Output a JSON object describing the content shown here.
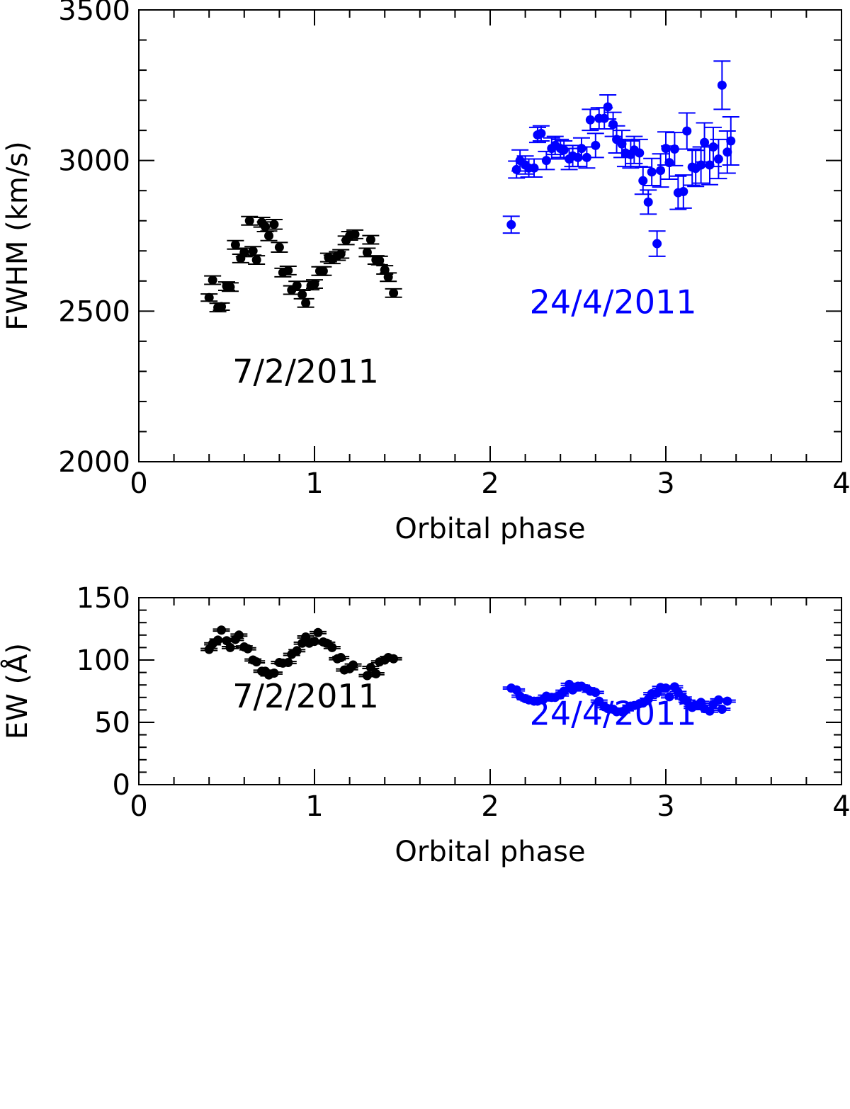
{
  "chart_data": [
    {
      "type": "scatter",
      "title": "",
      "xlabel": "Orbital phase",
      "ylabel": "FWHM (km/s)",
      "xlim": [
        0,
        4
      ],
      "ylim": [
        2000,
        3500
      ],
      "x_ticks": [
        0,
        1,
        2,
        3,
        4
      ],
      "y_ticks": [
        2000,
        2500,
        3000,
        3500
      ],
      "x_minor_step": 0.2,
      "y_minor_step": 100,
      "error_bars": true,
      "grid": false,
      "legend": "none",
      "annotations": [
        {
          "text": "7/2/2011",
          "color": "#000000",
          "x": 0.95,
          "y": 2300
        },
        {
          "text": "24/4/2011",
          "color": "#0000ff",
          "x": 2.7,
          "y": 2530
        }
      ],
      "series": [
        {
          "color": "#000000",
          "points": [
            [
              0.4,
              2545,
              12
            ],
            [
              0.42,
              2603,
              14
            ],
            [
              0.45,
              2512,
              14
            ],
            [
              0.47,
              2515,
              12
            ],
            [
              0.5,
              2583,
              14
            ],
            [
              0.52,
              2580,
              14
            ],
            [
              0.55,
              2720,
              14
            ],
            [
              0.58,
              2675,
              14
            ],
            [
              0.6,
              2695,
              14
            ],
            [
              0.63,
              2800,
              14
            ],
            [
              0.65,
              2700,
              14
            ],
            [
              0.67,
              2670,
              14
            ],
            [
              0.7,
              2795,
              16
            ],
            [
              0.72,
              2780,
              16
            ],
            [
              0.74,
              2750,
              16
            ],
            [
              0.77,
              2788,
              16
            ],
            [
              0.8,
              2712,
              16
            ],
            [
              0.82,
              2628,
              14
            ],
            [
              0.85,
              2635,
              14
            ],
            [
              0.87,
              2570,
              14
            ],
            [
              0.9,
              2585,
              14
            ],
            [
              0.93,
              2555,
              14
            ],
            [
              0.95,
              2527,
              14
            ],
            [
              0.98,
              2585,
              14
            ],
            [
              1.0,
              2590,
              14
            ],
            [
              1.03,
              2633,
              14
            ],
            [
              1.05,
              2633,
              14
            ],
            [
              1.08,
              2678,
              14
            ],
            [
              1.1,
              2672,
              14
            ],
            [
              1.13,
              2683,
              14
            ],
            [
              1.15,
              2690,
              14
            ],
            [
              1.18,
              2735,
              14
            ],
            [
              1.2,
              2750,
              14
            ],
            [
              1.23,
              2755,
              14
            ],
            [
              1.3,
              2695,
              14
            ],
            [
              1.32,
              2737,
              14
            ],
            [
              1.35,
              2670,
              14
            ],
            [
              1.37,
              2668,
              14
            ],
            [
              1.4,
              2637,
              14
            ],
            [
              1.42,
              2613,
              14
            ],
            [
              1.45,
              2560,
              14
            ]
          ]
        },
        {
          "color": "#0000ff",
          "points": [
            [
              2.12,
              2787,
              28
            ],
            [
              2.15,
              2970,
              28
            ],
            [
              2.17,
              3000,
              35
            ],
            [
              2.2,
              2985,
              30
            ],
            [
              2.22,
              2975,
              30
            ],
            [
              2.25,
              2975,
              30
            ],
            [
              2.27,
              3085,
              25
            ],
            [
              2.29,
              3090,
              25
            ],
            [
              2.32,
              3000,
              30
            ],
            [
              2.35,
              3040,
              35
            ],
            [
              2.37,
              3050,
              30
            ],
            [
              2.4,
              3040,
              30
            ],
            [
              2.42,
              3035,
              30
            ],
            [
              2.45,
              3005,
              35
            ],
            [
              2.47,
              3015,
              35
            ],
            [
              2.5,
              3010,
              30
            ],
            [
              2.52,
              3040,
              35
            ],
            [
              2.55,
              3010,
              35
            ],
            [
              2.57,
              3135,
              35
            ],
            [
              2.6,
              3050,
              40
            ],
            [
              2.62,
              3140,
              35
            ],
            [
              2.65,
              3140,
              35
            ],
            [
              2.67,
              3178,
              40
            ],
            [
              2.7,
              3120,
              40
            ],
            [
              2.72,
              3070,
              45
            ],
            [
              2.75,
              3055,
              45
            ],
            [
              2.77,
              3025,
              45
            ],
            [
              2.8,
              3020,
              45
            ],
            [
              2.82,
              3035,
              45
            ],
            [
              2.85,
              3025,
              45
            ],
            [
              2.87,
              2933,
              45
            ],
            [
              2.9,
              2862,
              40
            ],
            [
              2.92,
              2962,
              45
            ],
            [
              2.95,
              2724,
              42
            ],
            [
              2.97,
              2967,
              55
            ],
            [
              3.0,
              3040,
              55
            ],
            [
              3.02,
              2993,
              55
            ],
            [
              3.05,
              3038,
              55
            ],
            [
              3.07,
              2893,
              55
            ],
            [
              3.1,
              2897,
              55
            ],
            [
              3.12,
              3098,
              60
            ],
            [
              3.15,
              2978,
              60
            ],
            [
              3.17,
              2974,
              60
            ],
            [
              3.2,
              2985,
              60
            ],
            [
              3.22,
              3060,
              65
            ],
            [
              3.25,
              2985,
              65
            ],
            [
              3.27,
              3045,
              65
            ],
            [
              3.3,
              3005,
              65
            ],
            [
              3.32,
              3250,
              80
            ],
            [
              3.35,
              3028,
              70
            ],
            [
              3.37,
              3065,
              80
            ]
          ]
        }
      ]
    },
    {
      "type": "scatter",
      "title": "",
      "xlabel": "Orbital phase",
      "ylabel": "EW (Å)",
      "xlim": [
        0,
        4
      ],
      "ylim": [
        0,
        150
      ],
      "x_ticks": [
        0,
        1,
        2,
        3,
        4
      ],
      "y_ticks": [
        0,
        50,
        100,
        150
      ],
      "x_minor_step": 0.2,
      "y_minor_step": 10,
      "error_bars": true,
      "grid": false,
      "legend": "none",
      "annotations": [
        {
          "text": "7/2/2011",
          "color": "#000000",
          "x": 0.95,
          "y": 71
        },
        {
          "text": "24/4/2011",
          "color": "#0000ff",
          "x": 2.7,
          "y": 57
        }
      ],
      "series": [
        {
          "color": "#000000",
          "points": [
            [
              0.4,
              108.5,
              0.8
            ],
            [
              0.42,
              113,
              0.8
            ],
            [
              0.45,
              116,
              0.8
            ],
            [
              0.47,
              124,
              0.8
            ],
            [
              0.5,
              115.5,
              0.8
            ],
            [
              0.52,
              110,
              0.8
            ],
            [
              0.55,
              116.5,
              0.8
            ],
            [
              0.57,
              120,
              0.8
            ],
            [
              0.6,
              110.5,
              0.8
            ],
            [
              0.62,
              109,
              0.8
            ],
            [
              0.65,
              100,
              0.8
            ],
            [
              0.67,
              98.5,
              0.8
            ],
            [
              0.7,
              91,
              0.8
            ],
            [
              0.72,
              91,
              0.8
            ],
            [
              0.74,
              88,
              0.8
            ],
            [
              0.77,
              89.5,
              0.8
            ],
            [
              0.8,
              98,
              0.8
            ],
            [
              0.82,
              97.5,
              0.8
            ],
            [
              0.85,
              98,
              0.8
            ],
            [
              0.87,
              104.5,
              0.8
            ],
            [
              0.9,
              107.5,
              0.8
            ],
            [
              0.93,
              113.5,
              0.8
            ],
            [
              0.95,
              118.5,
              0.8
            ],
            [
              0.97,
              113.5,
              0.8
            ],
            [
              1.0,
              115,
              0.8
            ],
            [
              1.02,
              122,
              0.8
            ],
            [
              1.05,
              114.5,
              0.8
            ],
            [
              1.07,
              113.5,
              0.8
            ],
            [
              1.1,
              110,
              0.8
            ],
            [
              1.13,
              101,
              0.8
            ],
            [
              1.15,
              102,
              0.8
            ],
            [
              1.17,
              92,
              0.8
            ],
            [
              1.2,
              93,
              0.8
            ],
            [
              1.22,
              96,
              0.8
            ],
            [
              1.3,
              87.5,
              0.8
            ],
            [
              1.32,
              94,
              0.8
            ],
            [
              1.35,
              89,
              0.8
            ],
            [
              1.37,
              98.5,
              0.8
            ],
            [
              1.4,
              100,
              0.8
            ],
            [
              1.42,
              102,
              0.8
            ],
            [
              1.45,
              101,
              0.8
            ]
          ]
        },
        {
          "color": "#0000ff",
          "points": [
            [
              2.12,
              77.5,
              0.8
            ],
            [
              2.15,
              76,
              0.8
            ],
            [
              2.17,
              71,
              0.8
            ],
            [
              2.2,
              69,
              0.8
            ],
            [
              2.22,
              68,
              0.8
            ],
            [
              2.25,
              67,
              0.8
            ],
            [
              2.27,
              67,
              0.8
            ],
            [
              2.3,
              68,
              0.8
            ],
            [
              2.32,
              71,
              0.8
            ],
            [
              2.35,
              70,
              0.8
            ],
            [
              2.37,
              70,
              0.8
            ],
            [
              2.4,
              72,
              0.8
            ],
            [
              2.42,
              75,
              0.8
            ],
            [
              2.45,
              80.5,
              0.8
            ],
            [
              2.47,
              76,
              0.8
            ],
            [
              2.5,
              79,
              0.8
            ],
            [
              2.52,
              79,
              0.8
            ],
            [
              2.55,
              77,
              0.8
            ],
            [
              2.57,
              75,
              0.8
            ],
            [
              2.6,
              74,
              0.8
            ],
            [
              2.62,
              67,
              0.8
            ],
            [
              2.65,
              62.5,
              0.8
            ],
            [
              2.67,
              61,
              0.8
            ],
            [
              2.7,
              60.5,
              0.8
            ],
            [
              2.72,
              58.5,
              0.8
            ],
            [
              2.75,
              58.5,
              0.8
            ],
            [
              2.77,
              60,
              0.8
            ],
            [
              2.8,
              63,
              0.8
            ],
            [
              2.82,
              63.5,
              0.8
            ],
            [
              2.85,
              65,
              0.8
            ],
            [
              2.87,
              65.5,
              0.8
            ],
            [
              2.9,
              68.5,
              0.8
            ],
            [
              2.92,
              73,
              0.8
            ],
            [
              2.95,
              73.5,
              0.8
            ],
            [
              2.97,
              78,
              0.8
            ],
            [
              3.0,
              77.5,
              0.8
            ],
            [
              3.02,
              70.5,
              0.8
            ],
            [
              3.05,
              78.5,
              0.8
            ],
            [
              3.07,
              74,
              0.8
            ],
            [
              3.1,
              69.5,
              0.8
            ],
            [
              3.12,
              67,
              0.8
            ],
            [
              3.15,
              62,
              0.8
            ],
            [
              3.17,
              63.5,
              0.8
            ],
            [
              3.2,
              66,
              0.8
            ],
            [
              3.22,
              61,
              0.8
            ],
            [
              3.25,
              59,
              0.8
            ],
            [
              3.27,
              64.5,
              0.8
            ],
            [
              3.3,
              68,
              0.8
            ],
            [
              3.32,
              60.5,
              0.8
            ],
            [
              3.35,
              67,
              0.8
            ]
          ]
        }
      ]
    }
  ]
}
